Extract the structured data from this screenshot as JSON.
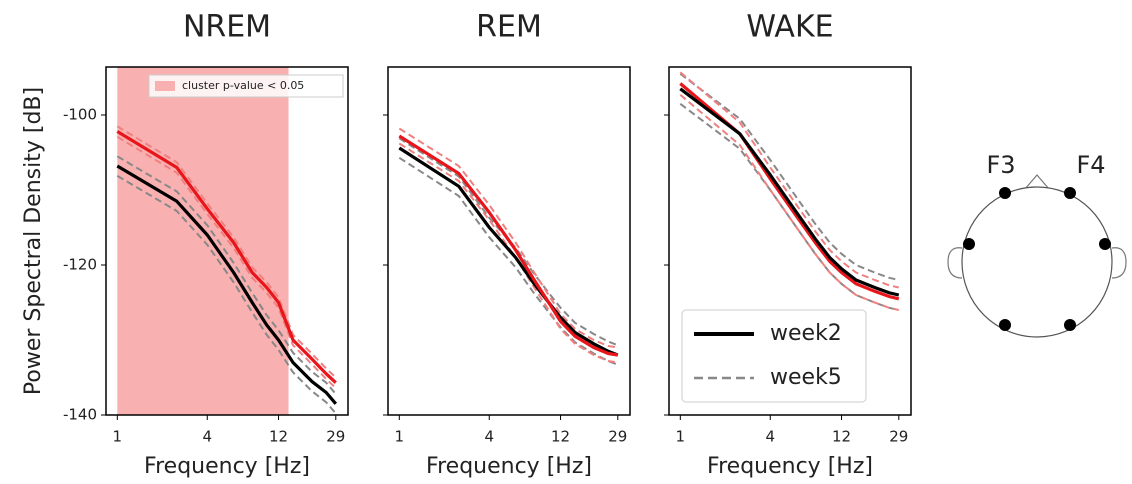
{
  "chart_data": [
    {
      "type": "line",
      "title": "NREM",
      "xlabel": "Frequency [Hz]",
      "ylabel": "Power Spectral Density [dB]",
      "xscale": "log",
      "xlim": [
        0.84,
        35
      ],
      "xticks": [
        1,
        4,
        12,
        29
      ],
      "ylim": [
        -140,
        -93.6
      ],
      "yticks": [
        -140,
        -120,
        -100
      ],
      "show_ytick_labels": true,
      "shade": {
        "x0": 1,
        "x1": 14,
        "label": "cluster p-value < 0.05",
        "color": "#f9b0b0"
      },
      "x": [
        1,
        2.5,
        4,
        6,
        8,
        10,
        12,
        15,
        20,
        25,
        29
      ],
      "series": [
        {
          "color": "#888888",
          "dash": true,
          "values": [
            -105.5,
            -110.2,
            -114.7,
            -119.7,
            -123.7,
            -126.7,
            -128.7,
            -131.7,
            -134.2,
            -135.7,
            -137.2
          ]
        },
        {
          "color": "#888888",
          "dash": true,
          "values": [
            -108.1,
            -112.8,
            -117.3,
            -122.3,
            -126.3,
            -129.3,
            -131.3,
            -134.3,
            -136.8,
            -138.3,
            -139.8
          ]
        },
        {
          "color": "#f08080",
          "dash": true,
          "values": [
            -101.5,
            -106.3,
            -111.8,
            -116.3,
            -120.3,
            -122.3,
            -124.3,
            -129.3,
            -131.8,
            -133.8,
            -135
          ]
        },
        {
          "color": "#f08080",
          "dash": true,
          "values": [
            -102.9,
            -107.7,
            -113.2,
            -117.7,
            -121.7,
            -123.7,
            -125.7,
            -130.7,
            -133.2,
            -135.2,
            -136.4
          ]
        },
        {
          "color": "#000000",
          "dash": false,
          "values": [
            -106.8,
            -111.5,
            -116,
            -121,
            -125,
            -128,
            -130,
            -133,
            -135.5,
            -137,
            -138.5
          ]
        },
        {
          "color": "#e8151b",
          "dash": false,
          "values": [
            -102.2,
            -107,
            -112.5,
            -117,
            -121,
            -123,
            -125,
            -130,
            -132.5,
            -134.5,
            -135.7
          ]
        }
      ]
    },
    {
      "type": "line",
      "title": "REM",
      "xlabel": "Frequency [Hz]",
      "xscale": "log",
      "xlim": [
        0.84,
        35
      ],
      "xticks": [
        1,
        4,
        12,
        29
      ],
      "ylim": [
        -140,
        -93.6
      ],
      "yticks": [
        -140,
        -120,
        -100
      ],
      "show_ytick_labels": false,
      "x": [
        1,
        2.5,
        4,
        6,
        8,
        10,
        12,
        15,
        20,
        25,
        29
      ],
      "series": [
        {
          "color": "#888888",
          "dash": true,
          "values": [
            -103.1,
            -108.2,
            -113.7,
            -117.7,
            -121.2,
            -123.7,
            -125.7,
            -127.7,
            -129.2,
            -130.2,
            -130.7
          ]
        },
        {
          "color": "#888888",
          "dash": true,
          "values": [
            -105.7,
            -110.8,
            -116.3,
            -120.3,
            -123.8,
            -126.3,
            -128.3,
            -130.3,
            -131.8,
            -132.8,
            -133.3
          ]
        },
        {
          "color": "#f08080",
          "dash": true,
          "values": [
            -101.8,
            -106.8,
            -112,
            -117,
            -121,
            -124,
            -126.5,
            -128.5,
            -130,
            -130.8,
            -131
          ]
        },
        {
          "color": "#f08080",
          "dash": true,
          "values": [
            -103.8,
            -108.8,
            -114,
            -119,
            -123,
            -126,
            -128.5,
            -130.5,
            -132,
            -132.8,
            -133
          ]
        },
        {
          "color": "#000000",
          "dash": false,
          "values": [
            -104.4,
            -109.5,
            -115,
            -119,
            -122.5,
            -125,
            -127,
            -129,
            -130.5,
            -131.5,
            -132
          ]
        },
        {
          "color": "#e8151b",
          "dash": false,
          "values": [
            -102.8,
            -107.8,
            -113,
            -118,
            -122,
            -125,
            -127.5,
            -129.5,
            -131,
            -131.8,
            -132
          ]
        }
      ]
    },
    {
      "type": "line",
      "title": "WAKE",
      "xlabel": "Frequency [Hz]",
      "xscale": "log",
      "xlim": [
        0.84,
        35
      ],
      "xticks": [
        1,
        4,
        12,
        29
      ],
      "ylim": [
        -140,
        -93.6
      ],
      "yticks": [
        -140,
        -120,
        -100
      ],
      "show_ytick_labels": false,
      "legend": "lower left",
      "x": [
        1,
        2.5,
        4,
        6,
        8,
        10,
        12,
        15,
        20,
        25,
        29
      ],
      "series": [
        {
          "name": "week5",
          "color": "#888888",
          "dash": true,
          "values": [
            -94.5,
            -100.5,
            -106,
            -111,
            -114.5,
            -117,
            -118.5,
            -120,
            -121,
            -121.7,
            -122
          ]
        },
        {
          "color": "#888888",
          "dash": true,
          "values": [
            -98.5,
            -104.5,
            -110,
            -115,
            -118.5,
            -121,
            -122.5,
            -124,
            -125,
            -125.7,
            -126
          ]
        },
        {
          "color": "#f08080",
          "dash": true,
          "values": [
            -94.3,
            -101,
            -107,
            -112,
            -115.5,
            -118,
            -119.5,
            -121,
            -122,
            -122.7,
            -123
          ]
        },
        {
          "color": "#f08080",
          "dash": true,
          "values": [
            -97.3,
            -104,
            -110,
            -115,
            -118.5,
            -121,
            -122.5,
            -124,
            -125,
            -125.7,
            -126
          ]
        },
        {
          "color": "#e8151b",
          "dash": false,
          "values": [
            -95.8,
            -102.5,
            -108.5,
            -113.5,
            -117,
            -119.5,
            -121,
            -122.5,
            -123.5,
            -124.2,
            -124.5
          ]
        },
        {
          "name": "week2",
          "color": "#000000",
          "dash": false,
          "values": [
            -96.5,
            -102.5,
            -108,
            -113,
            -116.5,
            -119,
            -120.5,
            -122,
            -123,
            -123.7,
            -124
          ]
        }
      ]
    }
  ],
  "head": {
    "labels": [
      "F3",
      "F4"
    ]
  }
}
